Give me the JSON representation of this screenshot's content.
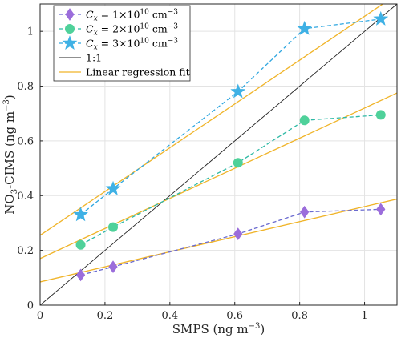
{
  "chart_data": {
    "type": "scatter",
    "xlabel": "SMPS (ng m⁻³)",
    "ylabel": "NO₃-CIMS (ng m⁻³)",
    "xlim": [
      0,
      1.1
    ],
    "ylim": [
      0,
      1.1
    ],
    "xticks": [
      "0",
      "0.2",
      "0.4",
      "0.6",
      "0.8",
      "1"
    ],
    "yticks": [
      "0",
      "0.2",
      "0.4",
      "0.6",
      "0.8",
      "1"
    ],
    "grid": true,
    "legend_position": "top-left",
    "series": [
      {
        "name": "Cₓ = 1×10¹⁰ cm⁻³",
        "marker": "diamond",
        "color": "#9b6ddb",
        "line_color": "#6b6bd0",
        "x": [
          0.125,
          0.225,
          0.61,
          0.815,
          1.05
        ],
        "y": [
          0.11,
          0.14,
          0.26,
          0.34,
          0.35
        ],
        "fit": [
          0.085,
          0.275
        ]
      },
      {
        "name": "Cₓ = 2×10¹⁰ cm⁻³",
        "marker": "circle",
        "color": "#4fd19a",
        "line_color": "#2eb9a5",
        "x": [
          0.125,
          0.225,
          0.61,
          0.815,
          1.05
        ],
        "y": [
          0.22,
          0.285,
          0.52,
          0.675,
          0.695
        ],
        "fit": [
          0.17,
          0.55
        ]
      },
      {
        "name": "Cₓ = 3×10¹⁰ cm⁻³",
        "marker": "star",
        "color": "#3fb1e5",
        "line_color": "#30a7e0",
        "x": [
          0.125,
          0.225,
          0.61,
          0.815,
          1.05
        ],
        "y": [
          0.33,
          0.425,
          0.78,
          1.01,
          1.045
        ],
        "fit": [
          0.255,
          0.8
        ]
      }
    ],
    "reference_line": {
      "name": "1:1",
      "color": "#222222"
    },
    "regression": {
      "name": "Linear regression fit",
      "color": "#f0b429"
    }
  }
}
